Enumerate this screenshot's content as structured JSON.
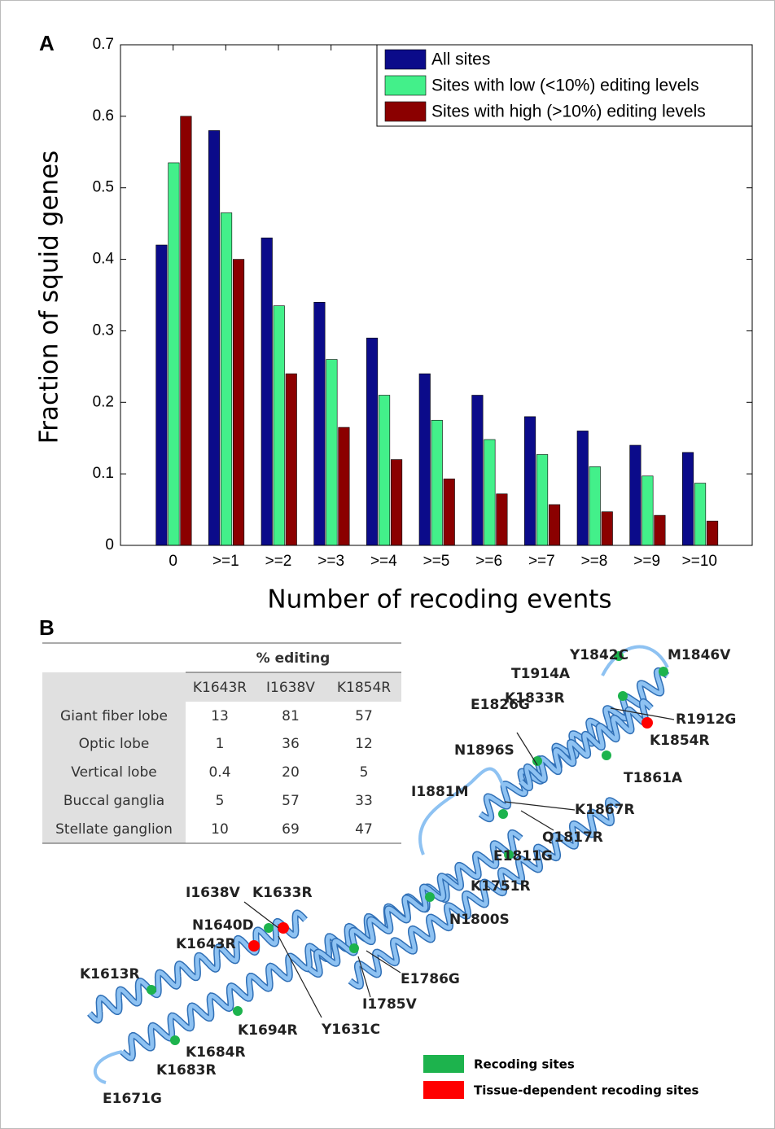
{
  "panels": [
    "A",
    "B"
  ],
  "chart_data": {
    "type": "bar",
    "xlabel": "Number of recoding events",
    "ylabel": "Fraction of squid genes",
    "categories": [
      "0",
      ">=1",
      ">=2",
      ">=3",
      ">=4",
      ">=5",
      ">=6",
      ">=7",
      ">=8",
      ">=9",
      ">=10"
    ],
    "series": [
      {
        "name": "All sites",
        "color": "#0b0b8a",
        "values": [
          0.42,
          0.58,
          0.43,
          0.34,
          0.29,
          0.24,
          0.21,
          0.18,
          0.16,
          0.14,
          0.13
        ]
      },
      {
        "name": "Sites with low (<10%) editing levels",
        "color": "#43f08a",
        "values": [
          0.535,
          0.465,
          0.335,
          0.26,
          0.21,
          0.175,
          0.148,
          0.127,
          0.11,
          0.097,
          0.087
        ]
      },
      {
        "name": "Sites with high (>10%) editing levels",
        "color": "#8b0000",
        "values": [
          0.6,
          0.4,
          0.24,
          0.165,
          0.12,
          0.093,
          0.072,
          0.057,
          0.047,
          0.042,
          0.034
        ]
      }
    ],
    "ylim": [
      0,
      0.7
    ],
    "yticks": [
      0,
      0.1,
      0.2,
      0.3,
      0.4,
      0.5,
      0.6,
      0.7
    ],
    "legend": "upper-right",
    "grid": false
  },
  "table": {
    "title": "% editing",
    "columns": [
      "K1643R",
      "I1638V",
      "K1854R"
    ],
    "rows": [
      [
        "Giant fiber lobe",
        13,
        81,
        57
      ],
      [
        "Optic lobe",
        1,
        36,
        12
      ],
      [
        "Vertical lobe",
        0.4,
        20,
        5
      ],
      [
        "Buccal ganglia",
        5,
        57,
        33
      ],
      [
        "Stellate ganglion",
        10,
        69,
        47
      ]
    ]
  },
  "structure": {
    "labels": [
      "Y1842C",
      "M1846V",
      "T1914A",
      "K1833R",
      "R1912G",
      "K1854R",
      "E1826G",
      "N1896S",
      "T1861A",
      "I1881M",
      "K1867R",
      "Q1817R",
      "E1811G",
      "K1751R",
      "N1800S",
      "I1638V",
      "K1633R",
      "N1640D",
      "K1643R",
      "K1613R",
      "E1786G",
      "I1785V",
      "K1694R",
      "Y1631C",
      "K1684R",
      "K1683R",
      "E1671G"
    ],
    "legend": [
      "Recoding sites",
      "Tissue-dependent  recoding sites"
    ]
  }
}
